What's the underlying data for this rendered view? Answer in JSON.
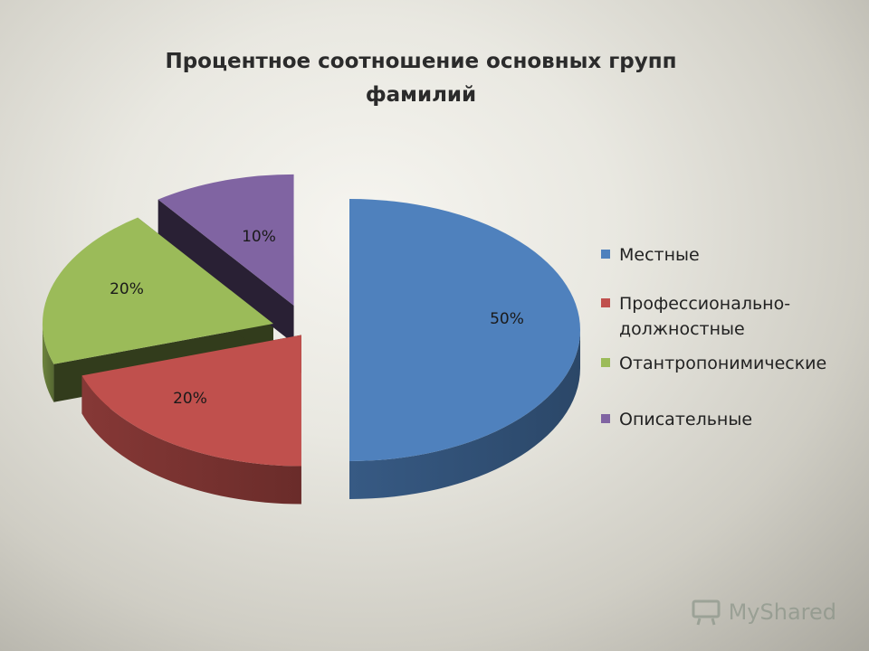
{
  "slide": {
    "watermark": "MyShared"
  },
  "chart_data": {
    "type": "pie",
    "title_lines": [
      "Процентное соотношение основных групп",
      "фамилий"
    ],
    "categories": [
      "Местные",
      "Профессионально-должностные",
      "Отантропонимические",
      "Описательные"
    ],
    "legend_lines": [
      [
        "Местные"
      ],
      [
        "Профессионально-",
        "должностные"
      ],
      [
        "Отантропонимические"
      ],
      [
        "Описательные"
      ]
    ],
    "values": [
      50,
      20,
      20,
      10
    ],
    "data_labels": [
      "50%",
      "20%",
      "20%",
      "10%"
    ],
    "colors": [
      "#4f81bd",
      "#c0504d",
      "#9bbb59",
      "#8064a2"
    ],
    "legend_position": "right",
    "exploded": true,
    "three_d": true
  }
}
